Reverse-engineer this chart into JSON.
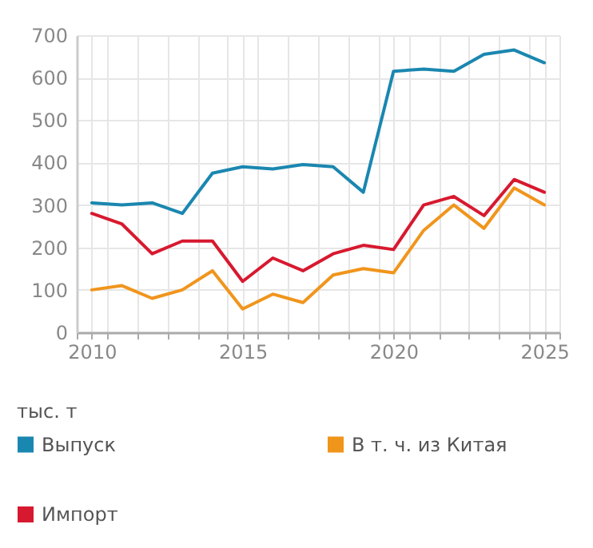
{
  "chart_data": {
    "type": "line",
    "ylabel": "тыс. т",
    "x": [
      2010,
      2011,
      2012,
      2013,
      2014,
      2015,
      2016,
      2017,
      2018,
      2019,
      2020,
      2021,
      2022,
      2023,
      2024,
      2025
    ],
    "series": [
      {
        "name": "Выпуск",
        "color": "#1a87b0",
        "values": [
          305,
          300,
          305,
          280,
          375,
          390,
          385,
          395,
          390,
          330,
          615,
          620,
          615,
          655,
          665,
          635
        ]
      },
      {
        "name": "В т. ч. из Китая",
        "color": "#f0951c",
        "values": [
          100,
          110,
          80,
          100,
          145,
          55,
          90,
          70,
          135,
          150,
          140,
          240,
          300,
          245,
          340,
          300
        ]
      },
      {
        "name": "Импорт",
        "color": "#d7192f",
        "values": [
          280,
          255,
          185,
          215,
          215,
          120,
          175,
          145,
          185,
          205,
          195,
          300,
          320,
          275,
          360,
          330
        ]
      }
    ],
    "xlim": [
      2009.5,
      2025.5
    ],
    "xticks": [
      {
        "value": 2009.5,
        "label": null
      },
      2010,
      {
        "value": 2010.5,
        "label": null
      },
      {
        "value": 2011.5,
        "label": null
      },
      {
        "value": 2012.5,
        "label": null
      },
      {
        "value": 2013.5,
        "label": null
      },
      {
        "value": 2014.5,
        "label": null
      },
      2015,
      {
        "value": 2015.5,
        "label": null
      },
      {
        "value": 2016.5,
        "label": null
      },
      {
        "value": 2017.5,
        "label": null
      },
      {
        "value": 2018.5,
        "label": null
      },
      {
        "value": 2019.5,
        "label": null
      },
      2020,
      {
        "value": 2020.5,
        "label": null
      },
      {
        "value": 2021.5,
        "label": null
      },
      {
        "value": 2022.5,
        "label": null
      },
      {
        "value": 2023.5,
        "label": null
      },
      {
        "value": 2024.5,
        "label": null
      },
      2025,
      {
        "value": 2025.5,
        "label": null
      }
    ],
    "ylim": [
      0,
      700
    ],
    "yticks": [
      0,
      100,
      200,
      300,
      400,
      500,
      600,
      700
    ],
    "grid": true,
    "legend": "bottom",
    "marker": "none",
    "line_style": "solid"
  }
}
